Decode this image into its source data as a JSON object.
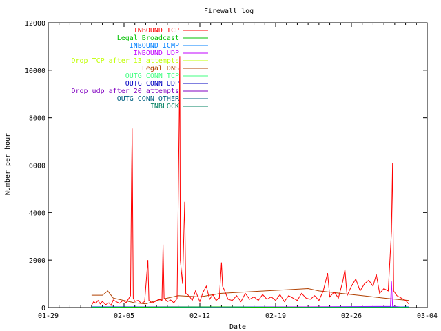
{
  "chart_data": {
    "type": "line",
    "title": "Firewall log",
    "xlabel": "Date",
    "ylabel": "Number per hour",
    "x_ticks": [
      "01-29",
      "02-05",
      "02-12",
      "02-19",
      "02-26",
      "03-04"
    ],
    "y_ticks": [
      0,
      2000,
      4000,
      6000,
      8000,
      10000,
      12000
    ],
    "x_range_days": [
      0,
      35
    ],
    "ylim": [
      0,
      12000
    ],
    "legend_position": "top-left",
    "series": [
      {
        "name": "INBOUND TCP",
        "color": "#ff0000",
        "points": [
          [
            4.0,
            100
          ],
          [
            4.2,
            250
          ],
          [
            4.4,
            180
          ],
          [
            4.6,
            300
          ],
          [
            4.8,
            150
          ],
          [
            5.0,
            260
          ],
          [
            5.3,
            120
          ],
          [
            5.6,
            200
          ],
          [
            5.8,
            90
          ],
          [
            6.0,
            320
          ],
          [
            6.3,
            240
          ],
          [
            6.6,
            180
          ],
          [
            6.9,
            300
          ],
          [
            7.2,
            210
          ],
          [
            7.6,
            500
          ],
          [
            7.7,
            5800
          ],
          [
            7.75,
            7550
          ],
          [
            7.8,
            3800
          ],
          [
            7.85,
            400
          ],
          [
            8.0,
            260
          ],
          [
            8.3,
            300
          ],
          [
            8.6,
            180
          ],
          [
            8.9,
            250
          ],
          [
            9.2,
            2000
          ],
          [
            9.3,
            300
          ],
          [
            9.6,
            200
          ],
          [
            9.9,
            260
          ],
          [
            10.2,
            350
          ],
          [
            10.5,
            300
          ],
          [
            10.6,
            2650
          ],
          [
            10.7,
            400
          ],
          [
            11.0,
            250
          ],
          [
            11.3,
            320
          ],
          [
            11.6,
            200
          ],
          [
            11.9,
            380
          ],
          [
            12.1,
            8100
          ],
          [
            12.15,
            10600
          ],
          [
            12.2,
            2000
          ],
          [
            12.4,
            1000
          ],
          [
            12.6,
            4450
          ],
          [
            12.7,
            600
          ],
          [
            13.0,
            500
          ],
          [
            13.3,
            300
          ],
          [
            13.6,
            700
          ],
          [
            14.0,
            250
          ],
          [
            14.3,
            650
          ],
          [
            14.6,
            900
          ],
          [
            14.9,
            350
          ],
          [
            15.2,
            550
          ],
          [
            15.5,
            300
          ],
          [
            15.8,
            400
          ],
          [
            16.0,
            1900
          ],
          [
            16.1,
            900
          ],
          [
            16.3,
            700
          ],
          [
            16.6,
            350
          ],
          [
            17.0,
            300
          ],
          [
            17.4,
            500
          ],
          [
            17.8,
            250
          ],
          [
            18.2,
            600
          ],
          [
            18.6,
            350
          ],
          [
            19.0,
            450
          ],
          [
            19.4,
            300
          ],
          [
            19.8,
            550
          ],
          [
            20.2,
            350
          ],
          [
            20.6,
            450
          ],
          [
            21.0,
            300
          ],
          [
            21.4,
            550
          ],
          [
            21.8,
            250
          ],
          [
            22.2,
            500
          ],
          [
            22.6,
            400
          ],
          [
            23.0,
            300
          ],
          [
            23.4,
            600
          ],
          [
            23.8,
            400
          ],
          [
            24.2,
            350
          ],
          [
            24.6,
            500
          ],
          [
            25.0,
            300
          ],
          [
            25.4,
            700
          ],
          [
            25.8,
            1450
          ],
          [
            26.0,
            450
          ],
          [
            26.4,
            650
          ],
          [
            26.8,
            400
          ],
          [
            27.2,
            1100
          ],
          [
            27.4,
            1600
          ],
          [
            27.6,
            500
          ],
          [
            28.0,
            900
          ],
          [
            28.4,
            1200
          ],
          [
            28.8,
            700
          ],
          [
            29.2,
            1000
          ],
          [
            29.6,
            1150
          ],
          [
            30.0,
            900
          ],
          [
            30.3,
            1400
          ],
          [
            30.6,
            600
          ],
          [
            31.0,
            800
          ],
          [
            31.4,
            700
          ],
          [
            31.7,
            3200
          ],
          [
            31.8,
            6100
          ],
          [
            31.9,
            700
          ],
          [
            32.2,
            500
          ],
          [
            32.6,
            400
          ],
          [
            33.0,
            300
          ],
          [
            33.3,
            150
          ]
        ]
      },
      {
        "name": "Legal Broadcast",
        "color": "#00c000",
        "points": [
          [
            4.0,
            10
          ],
          [
            8.0,
            15
          ],
          [
            12.0,
            20
          ],
          [
            16.0,
            30
          ],
          [
            19.0,
            15
          ],
          [
            24.0,
            10
          ],
          [
            30.0,
            10
          ],
          [
            33.3,
            10
          ]
        ]
      },
      {
        "name": "INBOUND ICMP",
        "color": "#0080ff",
        "points": [
          [
            4.0,
            20
          ],
          [
            10.0,
            15
          ],
          [
            16.0,
            20
          ],
          [
            22.0,
            10
          ],
          [
            28.0,
            20
          ],
          [
            33.3,
            20
          ]
        ]
      },
      {
        "name": "INBOUND UDP",
        "color": "#c000ff",
        "points": [
          [
            4.0,
            5
          ],
          [
            16.0,
            5
          ],
          [
            31.6,
            50
          ],
          [
            31.7,
            1100
          ],
          [
            31.8,
            50
          ],
          [
            33.3,
            5
          ]
        ]
      },
      {
        "name": "Drop TCP after 13 attempts",
        "color": "#c0ff00",
        "points": [
          [
            4.0,
            3
          ],
          [
            33.3,
            3
          ]
        ]
      },
      {
        "name": "Legal DNS",
        "color": "#b04000",
        "points": [
          [
            4.0,
            520
          ],
          [
            5.0,
            520
          ],
          [
            5.5,
            700
          ],
          [
            6.0,
            400
          ],
          [
            7.0,
            300
          ],
          [
            8.0,
            200
          ],
          [
            9.0,
            150
          ],
          [
            10.0,
            300
          ],
          [
            11.0,
            400
          ],
          [
            12.0,
            500
          ],
          [
            14.0,
            450
          ],
          [
            16.0,
            600
          ],
          [
            18.0,
            650
          ],
          [
            20.0,
            700
          ],
          [
            22.0,
            750
          ],
          [
            24.0,
            800
          ],
          [
            25.0,
            700
          ],
          [
            27.0,
            600
          ],
          [
            29.0,
            500
          ],
          [
            31.0,
            400
          ],
          [
            33.3,
            300
          ]
        ]
      },
      {
        "name": "OUTG CONN TCP",
        "color": "#40ff80",
        "points": [
          [
            4.0,
            5
          ],
          [
            33.3,
            5
          ]
        ]
      },
      {
        "name": "OUTG CONN UDP",
        "color": "#0000c0",
        "points": [
          [
            4.0,
            30
          ],
          [
            9.0,
            25
          ],
          [
            14.0,
            30
          ],
          [
            19.0,
            25
          ],
          [
            24.0,
            30
          ],
          [
            29.0,
            25
          ],
          [
            33.3,
            30
          ]
        ]
      },
      {
        "name": "Drop udp after 20 attempts",
        "color": "#8000c0",
        "points": [
          [
            4.0,
            2
          ],
          [
            33.3,
            2
          ]
        ]
      },
      {
        "name": "OUTG CONN OTHER",
        "color": "#006080",
        "points": [
          [
            4.0,
            8
          ],
          [
            33.3,
            8
          ]
        ]
      },
      {
        "name": "INBLOCK",
        "color": "#008060",
        "points": [
          [
            4.0,
            4
          ],
          [
            33.3,
            4
          ]
        ]
      }
    ]
  }
}
